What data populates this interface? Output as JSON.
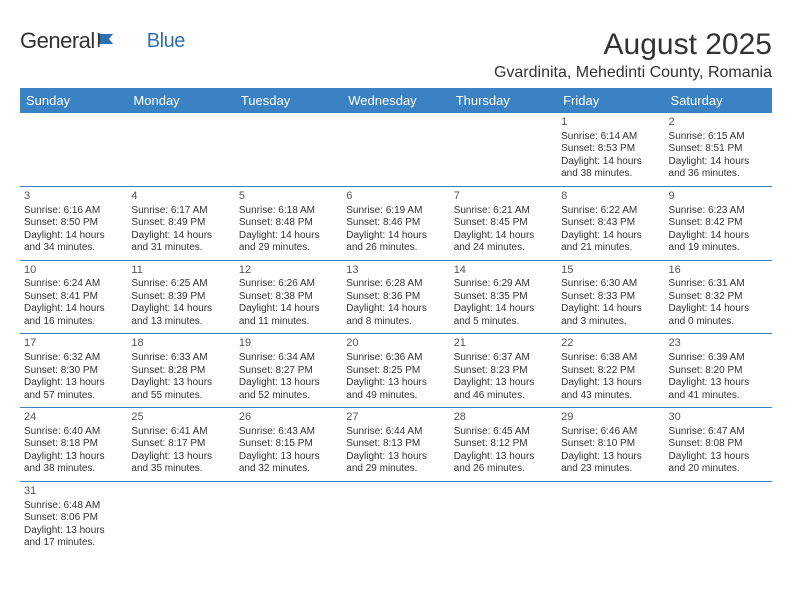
{
  "logo": {
    "text_dark": "General",
    "text_blue": "Blue",
    "icon_color": "#2f6fae"
  },
  "header": {
    "month_title": "August 2025",
    "location": "Gvardinita, Mehedinti County, Romania"
  },
  "colors": {
    "header_bg": "#3a82c4",
    "header_text": "#ffffff",
    "cell_border": "#3a82c4",
    "text": "#333333"
  },
  "weekdays": [
    "Sunday",
    "Monday",
    "Tuesday",
    "Wednesday",
    "Thursday",
    "Friday",
    "Saturday"
  ],
  "weeks": [
    [
      null,
      null,
      null,
      null,
      null,
      {
        "d": "1",
        "sr": "Sunrise: 6:14 AM",
        "ss": "Sunset: 8:53 PM",
        "dl1": "Daylight: 14 hours",
        "dl2": "and 38 minutes."
      },
      {
        "d": "2",
        "sr": "Sunrise: 6:15 AM",
        "ss": "Sunset: 8:51 PM",
        "dl1": "Daylight: 14 hours",
        "dl2": "and 36 minutes."
      }
    ],
    [
      {
        "d": "3",
        "sr": "Sunrise: 6:16 AM",
        "ss": "Sunset: 8:50 PM",
        "dl1": "Daylight: 14 hours",
        "dl2": "and 34 minutes."
      },
      {
        "d": "4",
        "sr": "Sunrise: 6:17 AM",
        "ss": "Sunset: 8:49 PM",
        "dl1": "Daylight: 14 hours",
        "dl2": "and 31 minutes."
      },
      {
        "d": "5",
        "sr": "Sunrise: 6:18 AM",
        "ss": "Sunset: 8:48 PM",
        "dl1": "Daylight: 14 hours",
        "dl2": "and 29 minutes."
      },
      {
        "d": "6",
        "sr": "Sunrise: 6:19 AM",
        "ss": "Sunset: 8:46 PM",
        "dl1": "Daylight: 14 hours",
        "dl2": "and 26 minutes."
      },
      {
        "d": "7",
        "sr": "Sunrise: 6:21 AM",
        "ss": "Sunset: 8:45 PM",
        "dl1": "Daylight: 14 hours",
        "dl2": "and 24 minutes."
      },
      {
        "d": "8",
        "sr": "Sunrise: 6:22 AM",
        "ss": "Sunset: 8:43 PM",
        "dl1": "Daylight: 14 hours",
        "dl2": "and 21 minutes."
      },
      {
        "d": "9",
        "sr": "Sunrise: 6:23 AM",
        "ss": "Sunset: 8:42 PM",
        "dl1": "Daylight: 14 hours",
        "dl2": "and 19 minutes."
      }
    ],
    [
      {
        "d": "10",
        "sr": "Sunrise: 6:24 AM",
        "ss": "Sunset: 8:41 PM",
        "dl1": "Daylight: 14 hours",
        "dl2": "and 16 minutes."
      },
      {
        "d": "11",
        "sr": "Sunrise: 6:25 AM",
        "ss": "Sunset: 8:39 PM",
        "dl1": "Daylight: 14 hours",
        "dl2": "and 13 minutes."
      },
      {
        "d": "12",
        "sr": "Sunrise: 6:26 AM",
        "ss": "Sunset: 8:38 PM",
        "dl1": "Daylight: 14 hours",
        "dl2": "and 11 minutes."
      },
      {
        "d": "13",
        "sr": "Sunrise: 6:28 AM",
        "ss": "Sunset: 8:36 PM",
        "dl1": "Daylight: 14 hours",
        "dl2": "and 8 minutes."
      },
      {
        "d": "14",
        "sr": "Sunrise: 6:29 AM",
        "ss": "Sunset: 8:35 PM",
        "dl1": "Daylight: 14 hours",
        "dl2": "and 5 minutes."
      },
      {
        "d": "15",
        "sr": "Sunrise: 6:30 AM",
        "ss": "Sunset: 8:33 PM",
        "dl1": "Daylight: 14 hours",
        "dl2": "and 3 minutes."
      },
      {
        "d": "16",
        "sr": "Sunrise: 6:31 AM",
        "ss": "Sunset: 8:32 PM",
        "dl1": "Daylight: 14 hours",
        "dl2": "and 0 minutes."
      }
    ],
    [
      {
        "d": "17",
        "sr": "Sunrise: 6:32 AM",
        "ss": "Sunset: 8:30 PM",
        "dl1": "Daylight: 13 hours",
        "dl2": "and 57 minutes."
      },
      {
        "d": "18",
        "sr": "Sunrise: 6:33 AM",
        "ss": "Sunset: 8:28 PM",
        "dl1": "Daylight: 13 hours",
        "dl2": "and 55 minutes."
      },
      {
        "d": "19",
        "sr": "Sunrise: 6:34 AM",
        "ss": "Sunset: 8:27 PM",
        "dl1": "Daylight: 13 hours",
        "dl2": "and 52 minutes."
      },
      {
        "d": "20",
        "sr": "Sunrise: 6:36 AM",
        "ss": "Sunset: 8:25 PM",
        "dl1": "Daylight: 13 hours",
        "dl2": "and 49 minutes."
      },
      {
        "d": "21",
        "sr": "Sunrise: 6:37 AM",
        "ss": "Sunset: 8:23 PM",
        "dl1": "Daylight: 13 hours",
        "dl2": "and 46 minutes."
      },
      {
        "d": "22",
        "sr": "Sunrise: 6:38 AM",
        "ss": "Sunset: 8:22 PM",
        "dl1": "Daylight: 13 hours",
        "dl2": "and 43 minutes."
      },
      {
        "d": "23",
        "sr": "Sunrise: 6:39 AM",
        "ss": "Sunset: 8:20 PM",
        "dl1": "Daylight: 13 hours",
        "dl2": "and 41 minutes."
      }
    ],
    [
      {
        "d": "24",
        "sr": "Sunrise: 6:40 AM",
        "ss": "Sunset: 8:18 PM",
        "dl1": "Daylight: 13 hours",
        "dl2": "and 38 minutes."
      },
      {
        "d": "25",
        "sr": "Sunrise: 6:41 AM",
        "ss": "Sunset: 8:17 PM",
        "dl1": "Daylight: 13 hours",
        "dl2": "and 35 minutes."
      },
      {
        "d": "26",
        "sr": "Sunrise: 6:43 AM",
        "ss": "Sunset: 8:15 PM",
        "dl1": "Daylight: 13 hours",
        "dl2": "and 32 minutes."
      },
      {
        "d": "27",
        "sr": "Sunrise: 6:44 AM",
        "ss": "Sunset: 8:13 PM",
        "dl1": "Daylight: 13 hours",
        "dl2": "and 29 minutes."
      },
      {
        "d": "28",
        "sr": "Sunrise: 6:45 AM",
        "ss": "Sunset: 8:12 PM",
        "dl1": "Daylight: 13 hours",
        "dl2": "and 26 minutes."
      },
      {
        "d": "29",
        "sr": "Sunrise: 6:46 AM",
        "ss": "Sunset: 8:10 PM",
        "dl1": "Daylight: 13 hours",
        "dl2": "and 23 minutes."
      },
      {
        "d": "30",
        "sr": "Sunrise: 6:47 AM",
        "ss": "Sunset: 8:08 PM",
        "dl1": "Daylight: 13 hours",
        "dl2": "and 20 minutes."
      }
    ],
    [
      {
        "d": "31",
        "sr": "Sunrise: 6:48 AM",
        "ss": "Sunset: 8:06 PM",
        "dl1": "Daylight: 13 hours",
        "dl2": "and 17 minutes."
      },
      null,
      null,
      null,
      null,
      null,
      null
    ]
  ]
}
